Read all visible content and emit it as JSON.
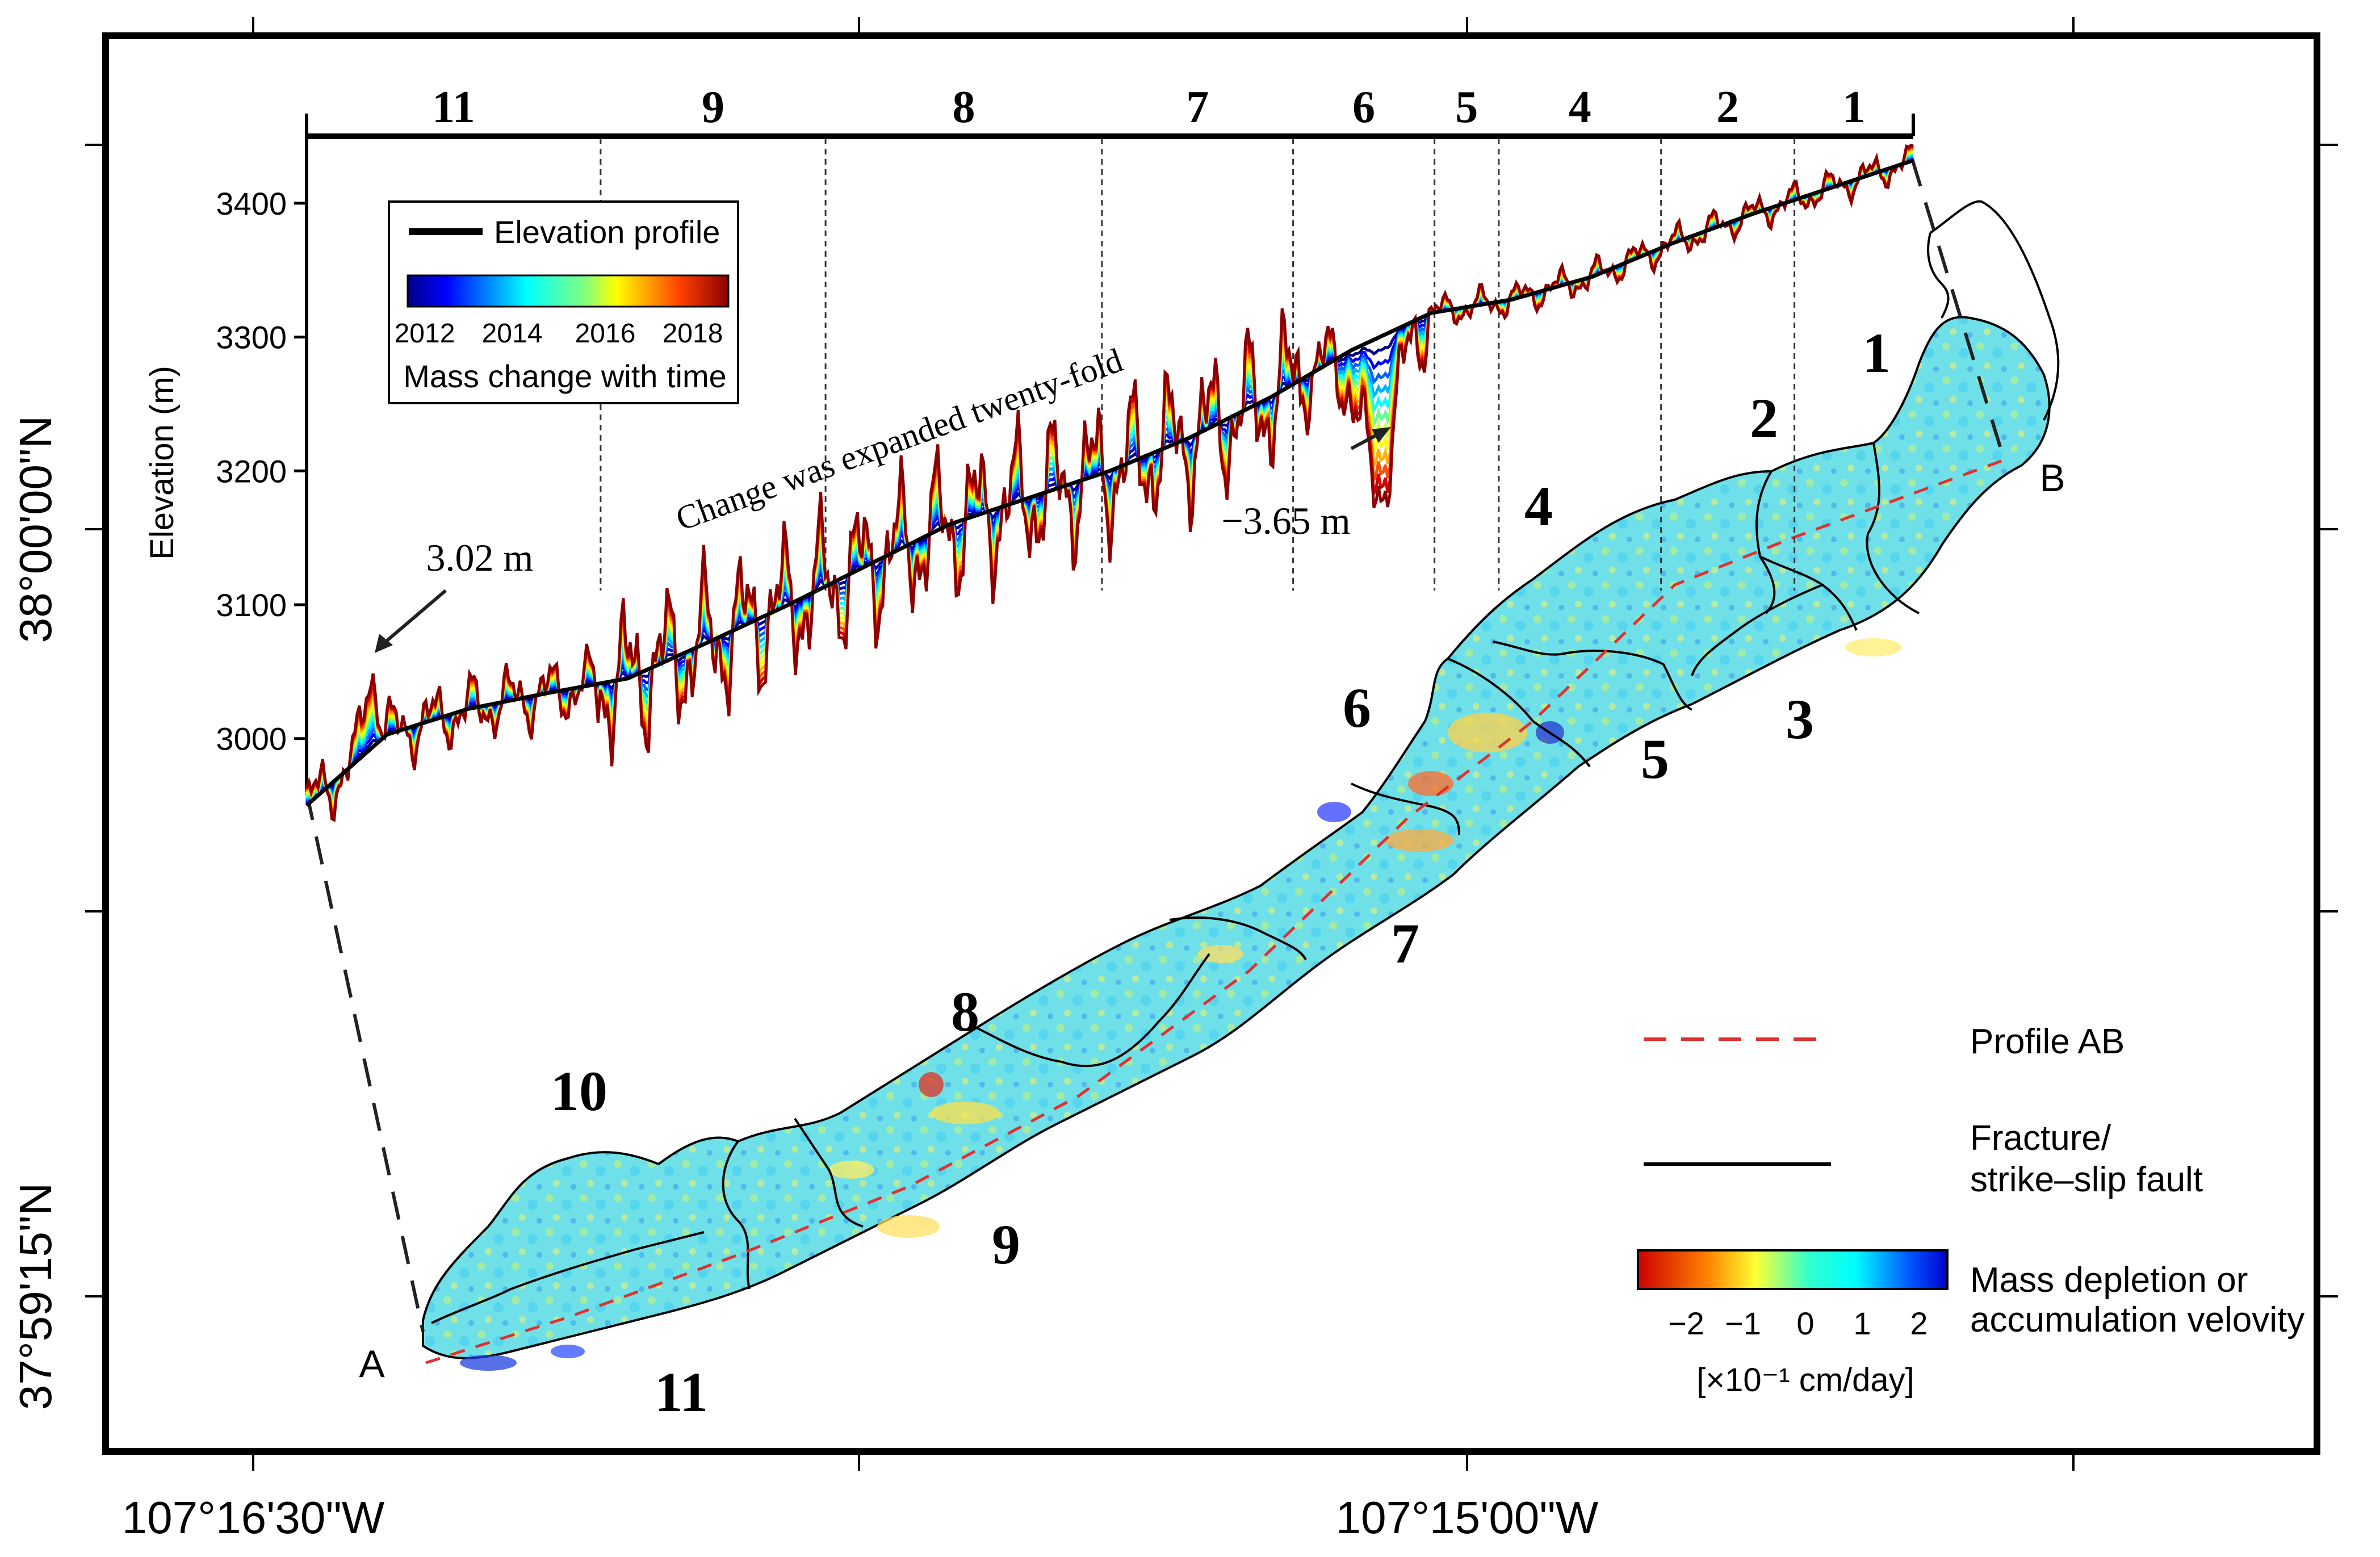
{
  "map": {
    "lon_labels": [
      "107°16'30\"W",
      "107°15'00\"W"
    ],
    "lat_labels": [
      "38°00'00\"N",
      "37°59'15\"N"
    ],
    "point_a": "A",
    "point_b": "B",
    "zones": [
      {
        "id": "1",
        "label": "1"
      },
      {
        "id": "2",
        "label": "2"
      },
      {
        "id": "3",
        "label": "3"
      },
      {
        "id": "4",
        "label": "4"
      },
      {
        "id": "5",
        "label": "5"
      },
      {
        "id": "6",
        "label": "6"
      },
      {
        "id": "7",
        "label": "7"
      },
      {
        "id": "8",
        "label": "8"
      },
      {
        "id": "9",
        "label": "9"
      },
      {
        "id": "10",
        "label": "10"
      },
      {
        "id": "11",
        "label": "11"
      }
    ]
  },
  "legend": {
    "profile_label": "Profile AB",
    "fracture_label_1": "Fracture/",
    "fracture_label_2": "strike–slip fault",
    "velocity_label_1": "Mass depletion or",
    "velocity_label_2": "accumulation velovity",
    "velocity_ticks": [
      "−2",
      "−1",
      "0",
      "1",
      "2"
    ],
    "velocity_unit": "[×10⁻¹ cm/day]",
    "colors": {
      "red": "#cc0000",
      "orange": "#ff7f00",
      "yellow": "#ffff33",
      "cyan": "#00ffff",
      "blue": "#0000ff",
      "darkblue": "#000088",
      "profile": "#e03030"
    }
  },
  "chart_data": {
    "type": "line",
    "title": "",
    "xlabel": "",
    "ylabel": "Elevation (m)",
    "ylim": [
      2960,
      3450
    ],
    "y_ticks": [
      3000,
      3100,
      3200,
      3300,
      3400
    ],
    "x_units": "fraction of profile A–B (0 = A, 1 = B)",
    "segment_labels": [
      "11",
      "9",
      "8",
      "7",
      "6",
      "5",
      "4",
      "2",
      "1"
    ],
    "segment_boundaries": [
      0.183,
      0.323,
      0.495,
      0.614,
      0.702,
      0.742,
      0.843,
      0.926
    ],
    "series": [
      {
        "name": "Elevation profile",
        "x": [
          0.0,
          0.05,
          0.1,
          0.15,
          0.2,
          0.25,
          0.3,
          0.35,
          0.4,
          0.45,
          0.5,
          0.55,
          0.6,
          0.65,
          0.7,
          0.75,
          0.8,
          0.85,
          0.9,
          0.95,
          1.0
        ],
        "y": [
          2950,
          3003,
          3022,
          3034,
          3045,
          3072,
          3100,
          3130,
          3160,
          3180,
          3200,
          3225,
          3255,
          3290,
          3318,
          3328,
          3345,
          3370,
          3392,
          3412,
          3432
        ]
      }
    ],
    "annotations": [
      {
        "text": "3.02 m",
        "x": 0.04,
        "y": 3040
      },
      {
        "text": "−3.65 m",
        "x": 0.667,
        "y": 3220
      },
      {
        "text": "Change was expanded twenty-fold",
        "x": 0.42,
        "y": 3220
      }
    ],
    "legend": {
      "line_label": "Elevation profile",
      "colorbar_ticks": [
        "2012",
        "2014",
        "2016",
        "2018"
      ],
      "colorbar_label": "Mass change with time"
    }
  }
}
